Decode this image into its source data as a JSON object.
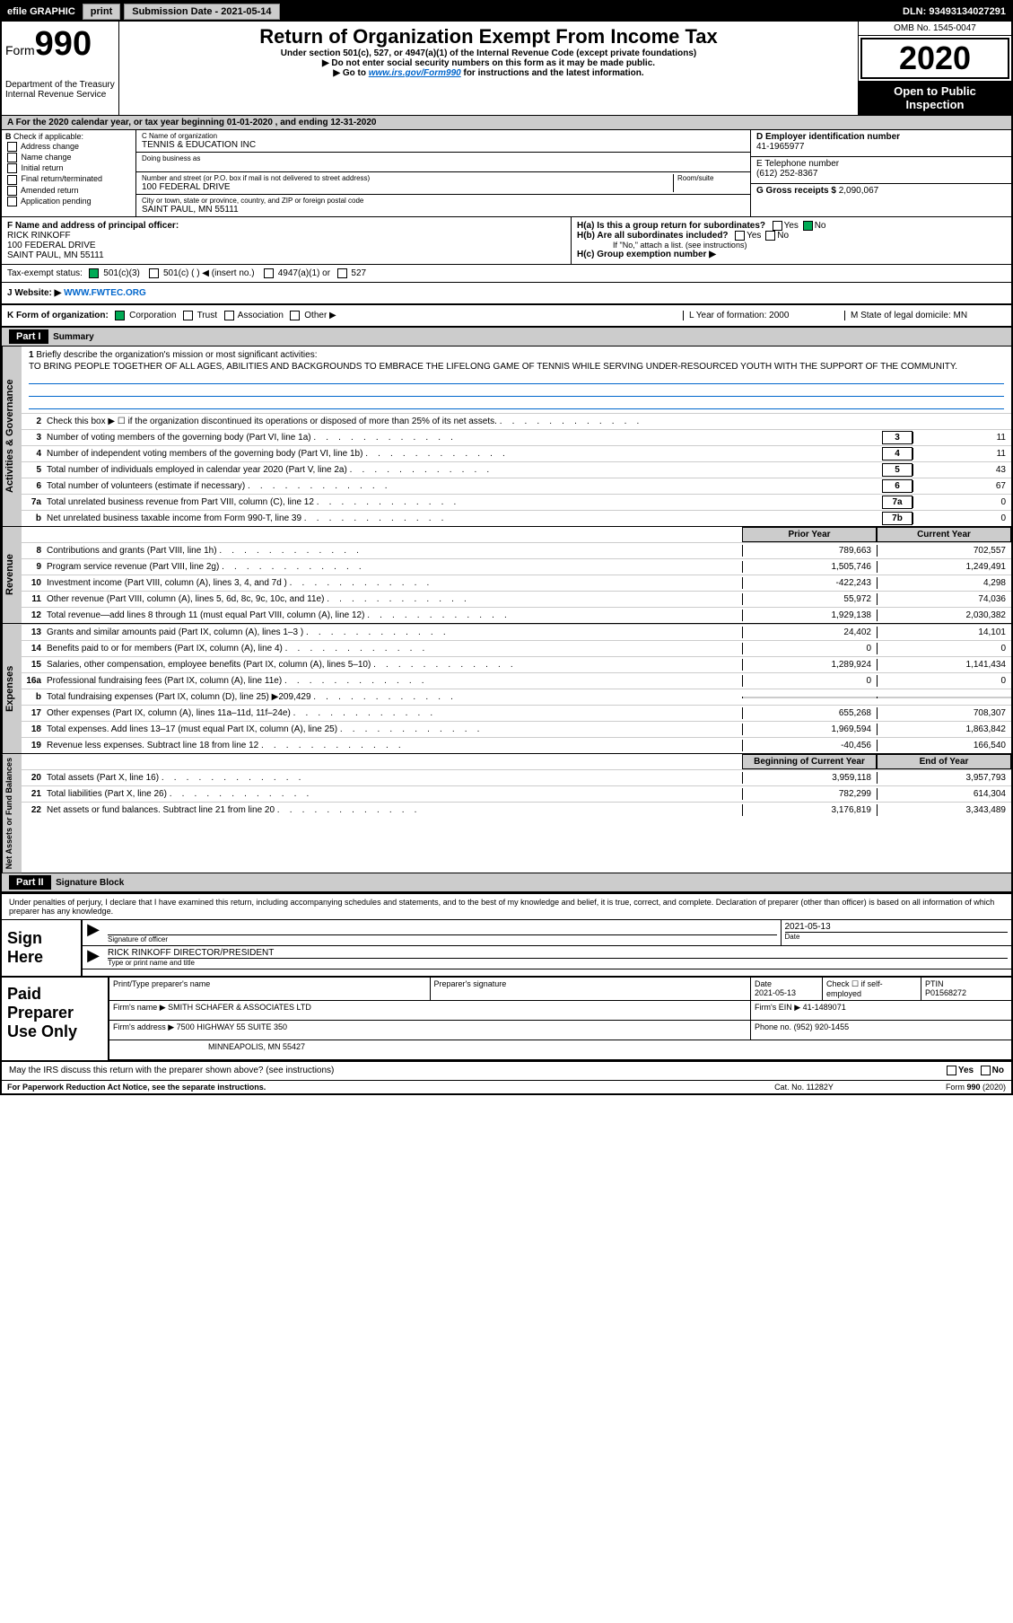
{
  "topbar": {
    "efile": "efile GRAPHIC",
    "print": "print",
    "subdate_label": "Submission Date - 2021-05-14",
    "dln": "DLN: 93493134027291"
  },
  "header": {
    "form_label": "Form",
    "form_num": "990",
    "dept": "Department of the Treasury",
    "irs": "Internal Revenue Service",
    "title": "Return of Organization Exempt From Income Tax",
    "sub1": "Under section 501(c), 527, or 4947(a)(1) of the Internal Revenue Code (except private foundations)",
    "sub2": "▶ Do not enter social security numbers on this form as it may be made public.",
    "sub3_pre": "▶ Go to ",
    "sub3_link": "www.irs.gov/Form990",
    "sub3_post": " for instructions and the latest information.",
    "omb": "OMB No. 1545-0047",
    "year": "2020",
    "public1": "Open to Public",
    "public2": "Inspection"
  },
  "period": "For the 2020 calendar year, or tax year beginning 01-01-2020    , and ending 12-31-2020",
  "box_b": {
    "label": "Check if applicable:",
    "opts": [
      "Address change",
      "Name change",
      "Initial return",
      "Final return/terminated",
      "Amended return",
      "Application pending"
    ]
  },
  "box_c": {
    "name_label": "C Name of organization",
    "name": "TENNIS & EDUCATION INC",
    "dba_label": "Doing business as",
    "addr_label": "Number and street (or P.O. box if mail is not delivered to street address)",
    "room_label": "Room/suite",
    "addr": "100 FEDERAL DRIVE",
    "city_label": "City or town, state or province, country, and ZIP or foreign postal code",
    "city": "SAINT PAUL, MN  55111"
  },
  "box_d": {
    "label": "D Employer identification number",
    "ein": "41-1965977"
  },
  "box_e": {
    "label": "E Telephone number",
    "phone": "(612) 252-8367"
  },
  "box_g": {
    "label": "G Gross receipts $",
    "amount": "2,090,067"
  },
  "box_f": {
    "label": "F  Name and address of principal officer:",
    "name": "RICK RINKOFF",
    "addr1": "100 FEDERAL DRIVE",
    "addr2": "SAINT PAUL, MN  55111"
  },
  "box_h": {
    "a": "H(a)  Is this a group return for subordinates?",
    "a_yes": "Yes",
    "a_no": "No",
    "b": "H(b)  Are all subordinates included?",
    "b_yes": "Yes",
    "b_no": "No",
    "note": "If \"No,\" attach a list. (see instructions)",
    "c": "H(c)  Group exemption number ▶"
  },
  "tax_status": {
    "label": "Tax-exempt status:",
    "o1": "501(c)(3)",
    "o2": "501(c) (   ) ◀ (insert no.)",
    "o3": "4947(a)(1) or",
    "o4": "527"
  },
  "website": {
    "label": "J     Website: ▶",
    "url": "WWW.FWTEC.ORG"
  },
  "korg": {
    "label": "K Form of organization:",
    "o1": "Corporation",
    "o2": "Trust",
    "o3": "Association",
    "o4": "Other ▶",
    "l": "L Year of formation: 2000",
    "m": "M State of legal domicile: MN"
  },
  "part1": {
    "hdr": "Part I",
    "title": "Summary"
  },
  "mission": {
    "num": "1",
    "label": "Briefly describe the organization's mission or most significant activities:",
    "text": "TO BRING PEOPLE TOGETHER OF ALL AGES, ABILITIES AND BACKGROUNDS TO EMBRACE THE LIFELONG GAME OF TENNIS WHILE SERVING UNDER-RESOURCED YOUTH WITH THE SUPPORT OF THE COMMUNITY."
  },
  "tabs": {
    "act": "Activities & Governance",
    "rev": "Revenue",
    "exp": "Expenses",
    "net": "Net Assets or Fund Balances"
  },
  "lines_act": [
    {
      "n": "2",
      "t": "Check this box ▶ ☐  if the organization discontinued its operations or disposed of more than 25% of its net assets."
    },
    {
      "n": "3",
      "t": "Number of voting members of the governing body (Part VI, line 1a)",
      "box": "3",
      "v": "11"
    },
    {
      "n": "4",
      "t": "Number of independent voting members of the governing body (Part VI, line 1b)",
      "box": "4",
      "v": "11"
    },
    {
      "n": "5",
      "t": "Total number of individuals employed in calendar year 2020 (Part V, line 2a)",
      "box": "5",
      "v": "43"
    },
    {
      "n": "6",
      "t": "Total number of volunteers (estimate if necessary)",
      "box": "6",
      "v": "67"
    },
    {
      "n": "7a",
      "t": "Total unrelated business revenue from Part VIII, column (C), line 12",
      "box": "7a",
      "v": "0"
    },
    {
      "n": "b",
      "t": "Net unrelated business taxable income from Form 990-T, line 39",
      "box": "7b",
      "v": "0"
    }
  ],
  "col_hdrs": {
    "prior": "Prior Year",
    "current": "Current Year"
  },
  "lines_rev": [
    {
      "n": "8",
      "t": "Contributions and grants (Part VIII, line 1h)",
      "p": "789,663",
      "c": "702,557"
    },
    {
      "n": "9",
      "t": "Program service revenue (Part VIII, line 2g)",
      "p": "1,505,746",
      "c": "1,249,491"
    },
    {
      "n": "10",
      "t": "Investment income (Part VIII, column (A), lines 3, 4, and 7d )",
      "p": "-422,243",
      "c": "4,298"
    },
    {
      "n": "11",
      "t": "Other revenue (Part VIII, column (A), lines 5, 6d, 8c, 9c, 10c, and 11e)",
      "p": "55,972",
      "c": "74,036"
    },
    {
      "n": "12",
      "t": "Total revenue—add lines 8 through 11 (must equal Part VIII, column (A), line 12)",
      "p": "1,929,138",
      "c": "2,030,382"
    }
  ],
  "lines_exp": [
    {
      "n": "13",
      "t": "Grants and similar amounts paid (Part IX, column (A), lines 1–3 )",
      "p": "24,402",
      "c": "14,101"
    },
    {
      "n": "14",
      "t": "Benefits paid to or for members (Part IX, column (A), line 4)",
      "p": "0",
      "c": "0"
    },
    {
      "n": "15",
      "t": "Salaries, other compensation, employee benefits (Part IX, column (A), lines 5–10)",
      "p": "1,289,924",
      "c": "1,141,434"
    },
    {
      "n": "16a",
      "t": "Professional fundraising fees (Part IX, column (A), line 11e)",
      "p": "0",
      "c": "0"
    },
    {
      "n": "b",
      "t": "Total fundraising expenses (Part IX, column (D), line 25) ▶209,429",
      "shade": true
    },
    {
      "n": "17",
      "t": "Other expenses (Part IX, column (A), lines 11a–11d, 11f–24e)",
      "p": "655,268",
      "c": "708,307"
    },
    {
      "n": "18",
      "t": "Total expenses. Add lines 13–17 (must equal Part IX, column (A), line 25)",
      "p": "1,969,594",
      "c": "1,863,842"
    },
    {
      "n": "19",
      "t": "Revenue less expenses. Subtract line 18 from line 12",
      "p": "-40,456",
      "c": "166,540"
    }
  ],
  "net_hdrs": {
    "beg": "Beginning of Current Year",
    "end": "End of Year"
  },
  "lines_net": [
    {
      "n": "20",
      "t": "Total assets (Part X, line 16)",
      "p": "3,959,118",
      "c": "3,957,793"
    },
    {
      "n": "21",
      "t": "Total liabilities (Part X, line 26)",
      "p": "782,299",
      "c": "614,304"
    },
    {
      "n": "22",
      "t": "Net assets or fund balances. Subtract line 21 from line 20",
      "p": "3,176,819",
      "c": "3,343,489"
    }
  ],
  "part2": {
    "hdr": "Part II",
    "title": "Signature Block"
  },
  "sig": {
    "intro": "Under penalties of perjury, I declare that I have examined this return, including accompanying schedules and statements, and to the best of my knowledge and belief, it is true, correct, and complete. Declaration of preparer (other than officer) is based on all information of which preparer has any knowledge.",
    "sign_here": "Sign Here",
    "sig_label": "Signature of officer",
    "date_label": "Date",
    "date": "2021-05-13",
    "name": "RICK RINKOFF  DIRECTOR/PRESIDENT",
    "name_label": "Type or print name and title"
  },
  "prep": {
    "title": "Paid Preparer Use Only",
    "h1": "Print/Type preparer's name",
    "h2": "Preparer's signature",
    "h3": "Date",
    "h3v": "2021-05-13",
    "h4": "Check ☐ if self-employed",
    "h5": "PTIN",
    "h5v": "P01568272",
    "firm_label": "Firm's name    ▶",
    "firm": "SMITH SCHAFER & ASSOCIATES LTD",
    "ein_label": "Firm's EIN ▶",
    "ein": "41-1489071",
    "addr_label": "Firm's address ▶",
    "addr1": "7500 HIGHWAY 55 SUITE 350",
    "addr2": "MINNEAPOLIS, MN  55427",
    "phone_label": "Phone no.",
    "phone": "(952) 920-1455"
  },
  "irs_discuss": {
    "q": "May the IRS discuss this return with the preparer shown above? (see instructions)",
    "yes": "Yes",
    "no": "No"
  },
  "footer": {
    "left": "For Paperwork Reduction Act Notice, see the separate instructions.",
    "mid": "Cat. No. 11282Y",
    "right": "Form 990 (2020)"
  }
}
